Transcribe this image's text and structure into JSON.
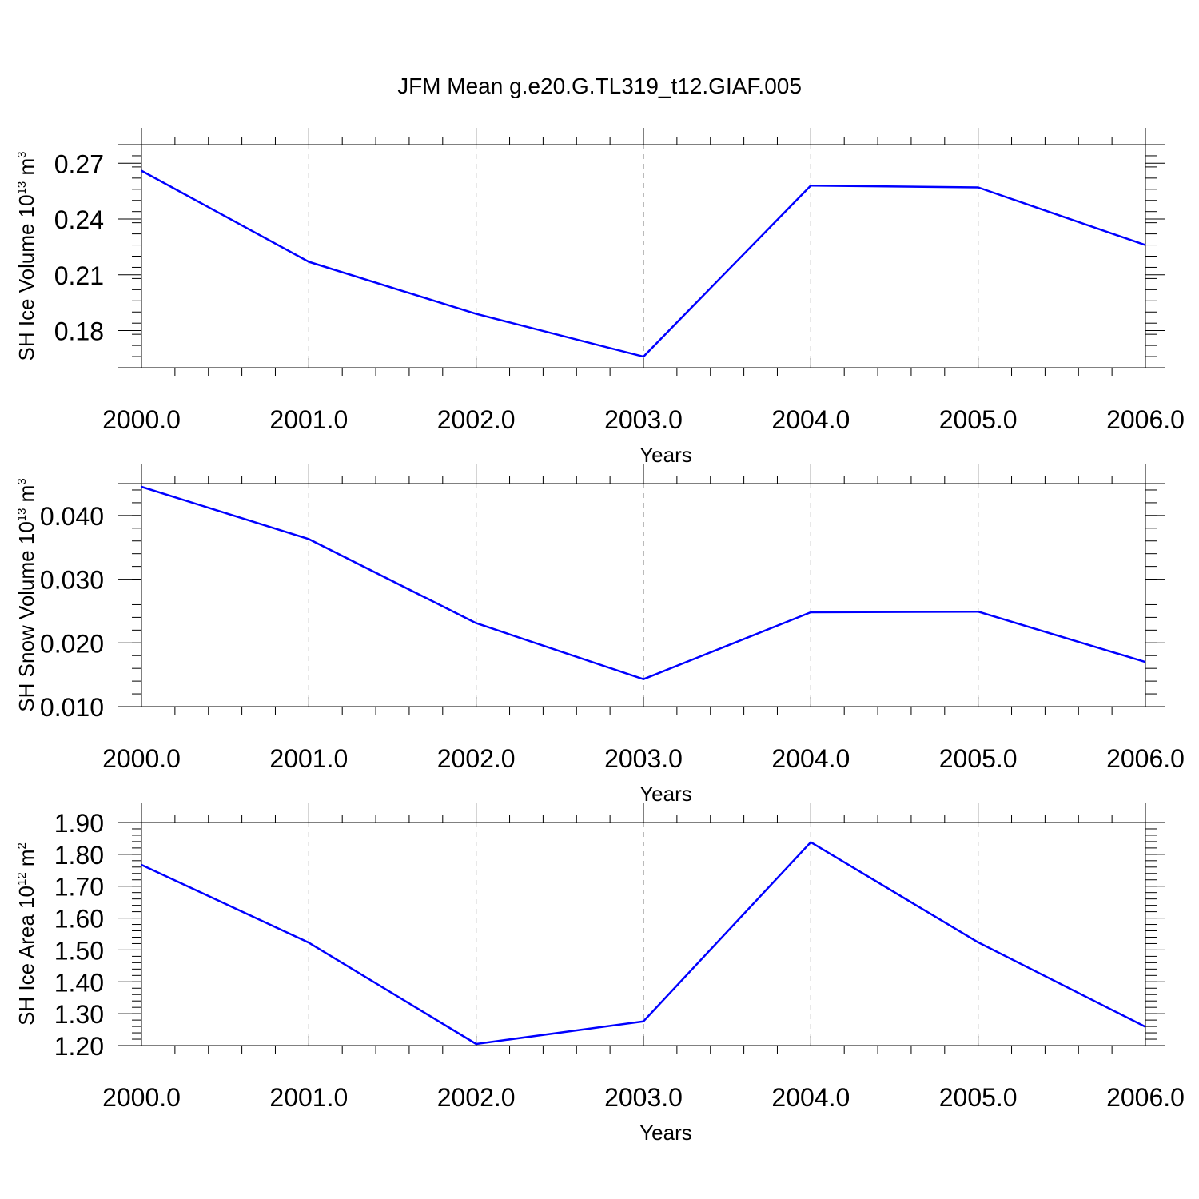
{
  "title": "JFM Mean g.e20.G.TL319_t12.GIAF.005",
  "chart_data": [
    {
      "type": "line",
      "title": "JFM Mean g.e20.G.TL319_t12.GIAF.005",
      "xlabel": "Years",
      "ylabel": {
        "text": "SH Ice Volume 10",
        "exp1": "13",
        "unit": " m",
        "exp2": "3"
      },
      "x": [
        2000,
        2001,
        2002,
        2003,
        2004,
        2005,
        2006
      ],
      "xlim": [
        2000,
        2006
      ],
      "xticks": [
        2000,
        2001,
        2002,
        2003,
        2004,
        2005,
        2006
      ],
      "xticklabels": [
        "2000.0",
        "2001.0",
        "2002.0",
        "2003.0",
        "2004.0",
        "2005.0",
        "2006.0"
      ],
      "ylim": [
        0.16,
        0.28
      ],
      "yticks": [
        0.18,
        0.21,
        0.24,
        0.27
      ],
      "yticklabels": [
        "0.18",
        "0.21",
        "0.24",
        "0.27"
      ],
      "yminor": 0.006,
      "grid": "vertical dashed",
      "series": [
        {
          "values": [
            0.266,
            0.217,
            0.189,
            0.166,
            0.258,
            0.257,
            0.226
          ],
          "color": "#0000ff"
        }
      ]
    },
    {
      "type": "line",
      "xlabel": "Years",
      "ylabel": {
        "text": "SH Snow Volume 10",
        "exp1": "13",
        "unit": " m",
        "exp2": "3"
      },
      "x": [
        2000,
        2001,
        2002,
        2003,
        2004,
        2005,
        2006
      ],
      "xlim": [
        2000,
        2006
      ],
      "xticks": [
        2000,
        2001,
        2002,
        2003,
        2004,
        2005,
        2006
      ],
      "xticklabels": [
        "2000.0",
        "2001.0",
        "2002.0",
        "2003.0",
        "2004.0",
        "2005.0",
        "2006.0"
      ],
      "ylim": [
        0.01,
        0.045
      ],
      "yticks": [
        0.01,
        0.02,
        0.03,
        0.04
      ],
      "yticklabels": [
        "0.010",
        "0.020",
        "0.030",
        "0.040"
      ],
      "yminor": 0.002,
      "grid": "vertical dashed",
      "series": [
        {
          "values": [
            0.0445,
            0.0363,
            0.0231,
            0.0143,
            0.0248,
            0.0249,
            0.017
          ],
          "color": "#0000ff"
        }
      ]
    },
    {
      "type": "line",
      "xlabel": "Years",
      "ylabel": {
        "text": "SH Ice Area 10",
        "exp1": "12",
        "unit": " m",
        "exp2": "2"
      },
      "x": [
        2000,
        2001,
        2002,
        2003,
        2004,
        2005,
        2006
      ],
      "xlim": [
        2000,
        2006
      ],
      "xticks": [
        2000,
        2001,
        2002,
        2003,
        2004,
        2005,
        2006
      ],
      "xticklabels": [
        "2000.0",
        "2001.0",
        "2002.0",
        "2003.0",
        "2004.0",
        "2005.0",
        "2006.0"
      ],
      "ylim": [
        1.2,
        1.9
      ],
      "yticks": [
        1.2,
        1.3,
        1.4,
        1.5,
        1.6,
        1.7,
        1.8,
        1.9
      ],
      "yticklabels": [
        "1.20",
        "1.30",
        "1.40",
        "1.50",
        "1.60",
        "1.70",
        "1.80",
        "1.90"
      ],
      "yminor": 0.02,
      "grid": "vertical dashed",
      "series": [
        {
          "values": [
            1.767,
            1.523,
            1.205,
            1.276,
            1.838,
            1.524,
            1.259
          ],
          "color": "#0000ff"
        }
      ]
    }
  ]
}
